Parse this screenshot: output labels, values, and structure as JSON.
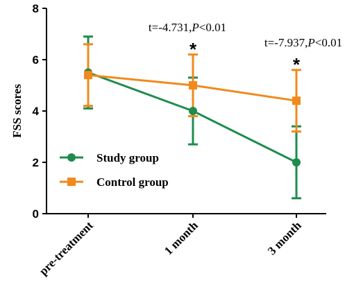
{
  "chart_data": {
    "type": "line",
    "ylabel": "FSS scores",
    "xlabel": "",
    "ylim": [
      0,
      8
    ],
    "yticks": [
      0,
      2,
      4,
      6,
      8
    ],
    "categories": [
      "pre-treatment",
      "1 month",
      "3 month"
    ],
    "series": [
      {
        "name": "Study group",
        "color": "#1e8c4e",
        "marker": "circle",
        "values": [
          5.5,
          4.0,
          2.0
        ],
        "error": [
          1.4,
          1.3,
          1.4
        ]
      },
      {
        "name": "Control group",
        "color": "#f08a1c",
        "marker": "square",
        "values": [
          5.4,
          5.0,
          4.4
        ],
        "error": [
          1.2,
          1.2,
          1.2
        ]
      }
    ],
    "annotations": [
      {
        "category": "1 month",
        "t_prefix": "t=-4.731,",
        "p_symbol": "P",
        "p_suffix": "<0.01",
        "star": "*"
      },
      {
        "category": "3 month",
        "t_prefix": "t=-7.937,",
        "p_symbol": "P",
        "p_suffix": "<0.01",
        "star": "*"
      }
    ],
    "legend_position": "bottom-left",
    "grid": false
  }
}
